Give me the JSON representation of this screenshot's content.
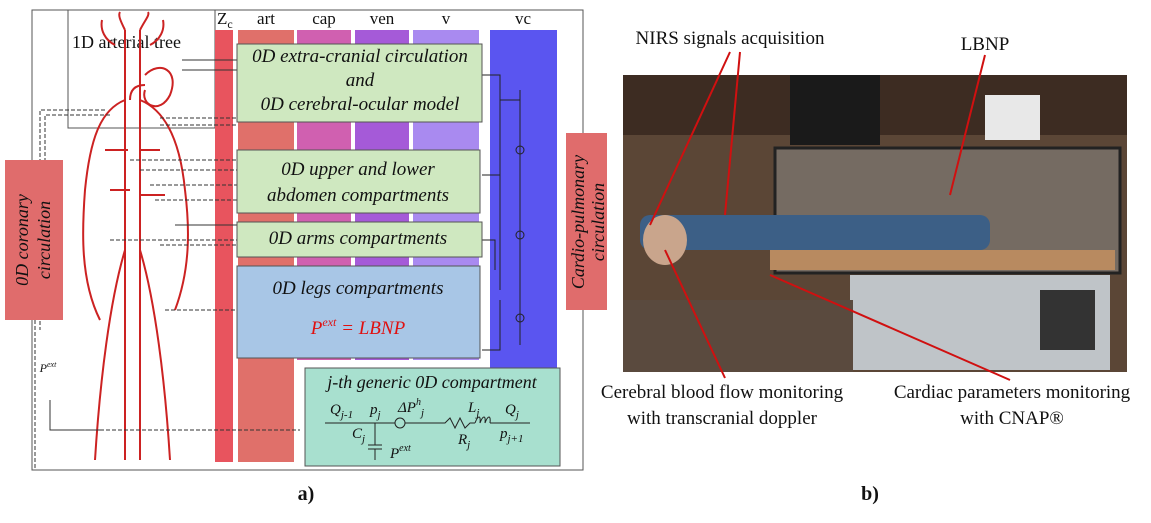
{
  "panel_a": {
    "label": "a)",
    "tree_label": "1D arterial tree",
    "zc": {
      "main": "Z",
      "sub": "c"
    },
    "columns": [
      "art",
      "cap",
      "ven",
      "v",
      "vc"
    ],
    "boxes": [
      {
        "lines": [
          "0D extra-cranial circulation",
          "and",
          "0D cerebral-ocular model"
        ]
      },
      {
        "lines": [
          "0D upper and lower",
          "abdomen compartments"
        ]
      },
      {
        "lines": [
          "0D arms compartments"
        ]
      },
      {
        "lines": [
          "0D legs compartments"
        ],
        "formula": {
          "p": "P",
          "sup": "ext",
          "rest": " = LBNP"
        }
      }
    ],
    "coronary": [
      "0D coronary",
      "circulation"
    ],
    "coronary_pressure": {
      "base": "P",
      "sup": "ext"
    },
    "cardio": [
      "Cardio-pulmonary",
      "circulation"
    ],
    "generic": {
      "title": "j-th generic 0D compartment",
      "q_in": {
        "base": "Q",
        "sub": "j-1"
      },
      "p_j": {
        "base": "p",
        "sub": "j"
      },
      "dp": {
        "base": "ΔP",
        "sup": "h",
        "sub": "j"
      },
      "l": {
        "base": "L",
        "sub": "j"
      },
      "q_out": {
        "base": "Q",
        "sub": "j"
      },
      "c": {
        "base": "C",
        "sub": "j"
      },
      "r": {
        "base": "R",
        "sub": "j"
      },
      "p_next": {
        "base": "p",
        "sub": "j+1"
      },
      "pext": {
        "base": "P",
        "sup": "ext"
      }
    }
  },
  "panel_b": {
    "label": "b)",
    "nirs": "NIRS signals acquisition",
    "lbnp": "LBNP",
    "cerebral": [
      "Cerebral blood flow monitoring",
      "with transcranial doppler"
    ],
    "cardiac": [
      "Cardiac parameters monitoring",
      "with CNAP®"
    ]
  }
}
